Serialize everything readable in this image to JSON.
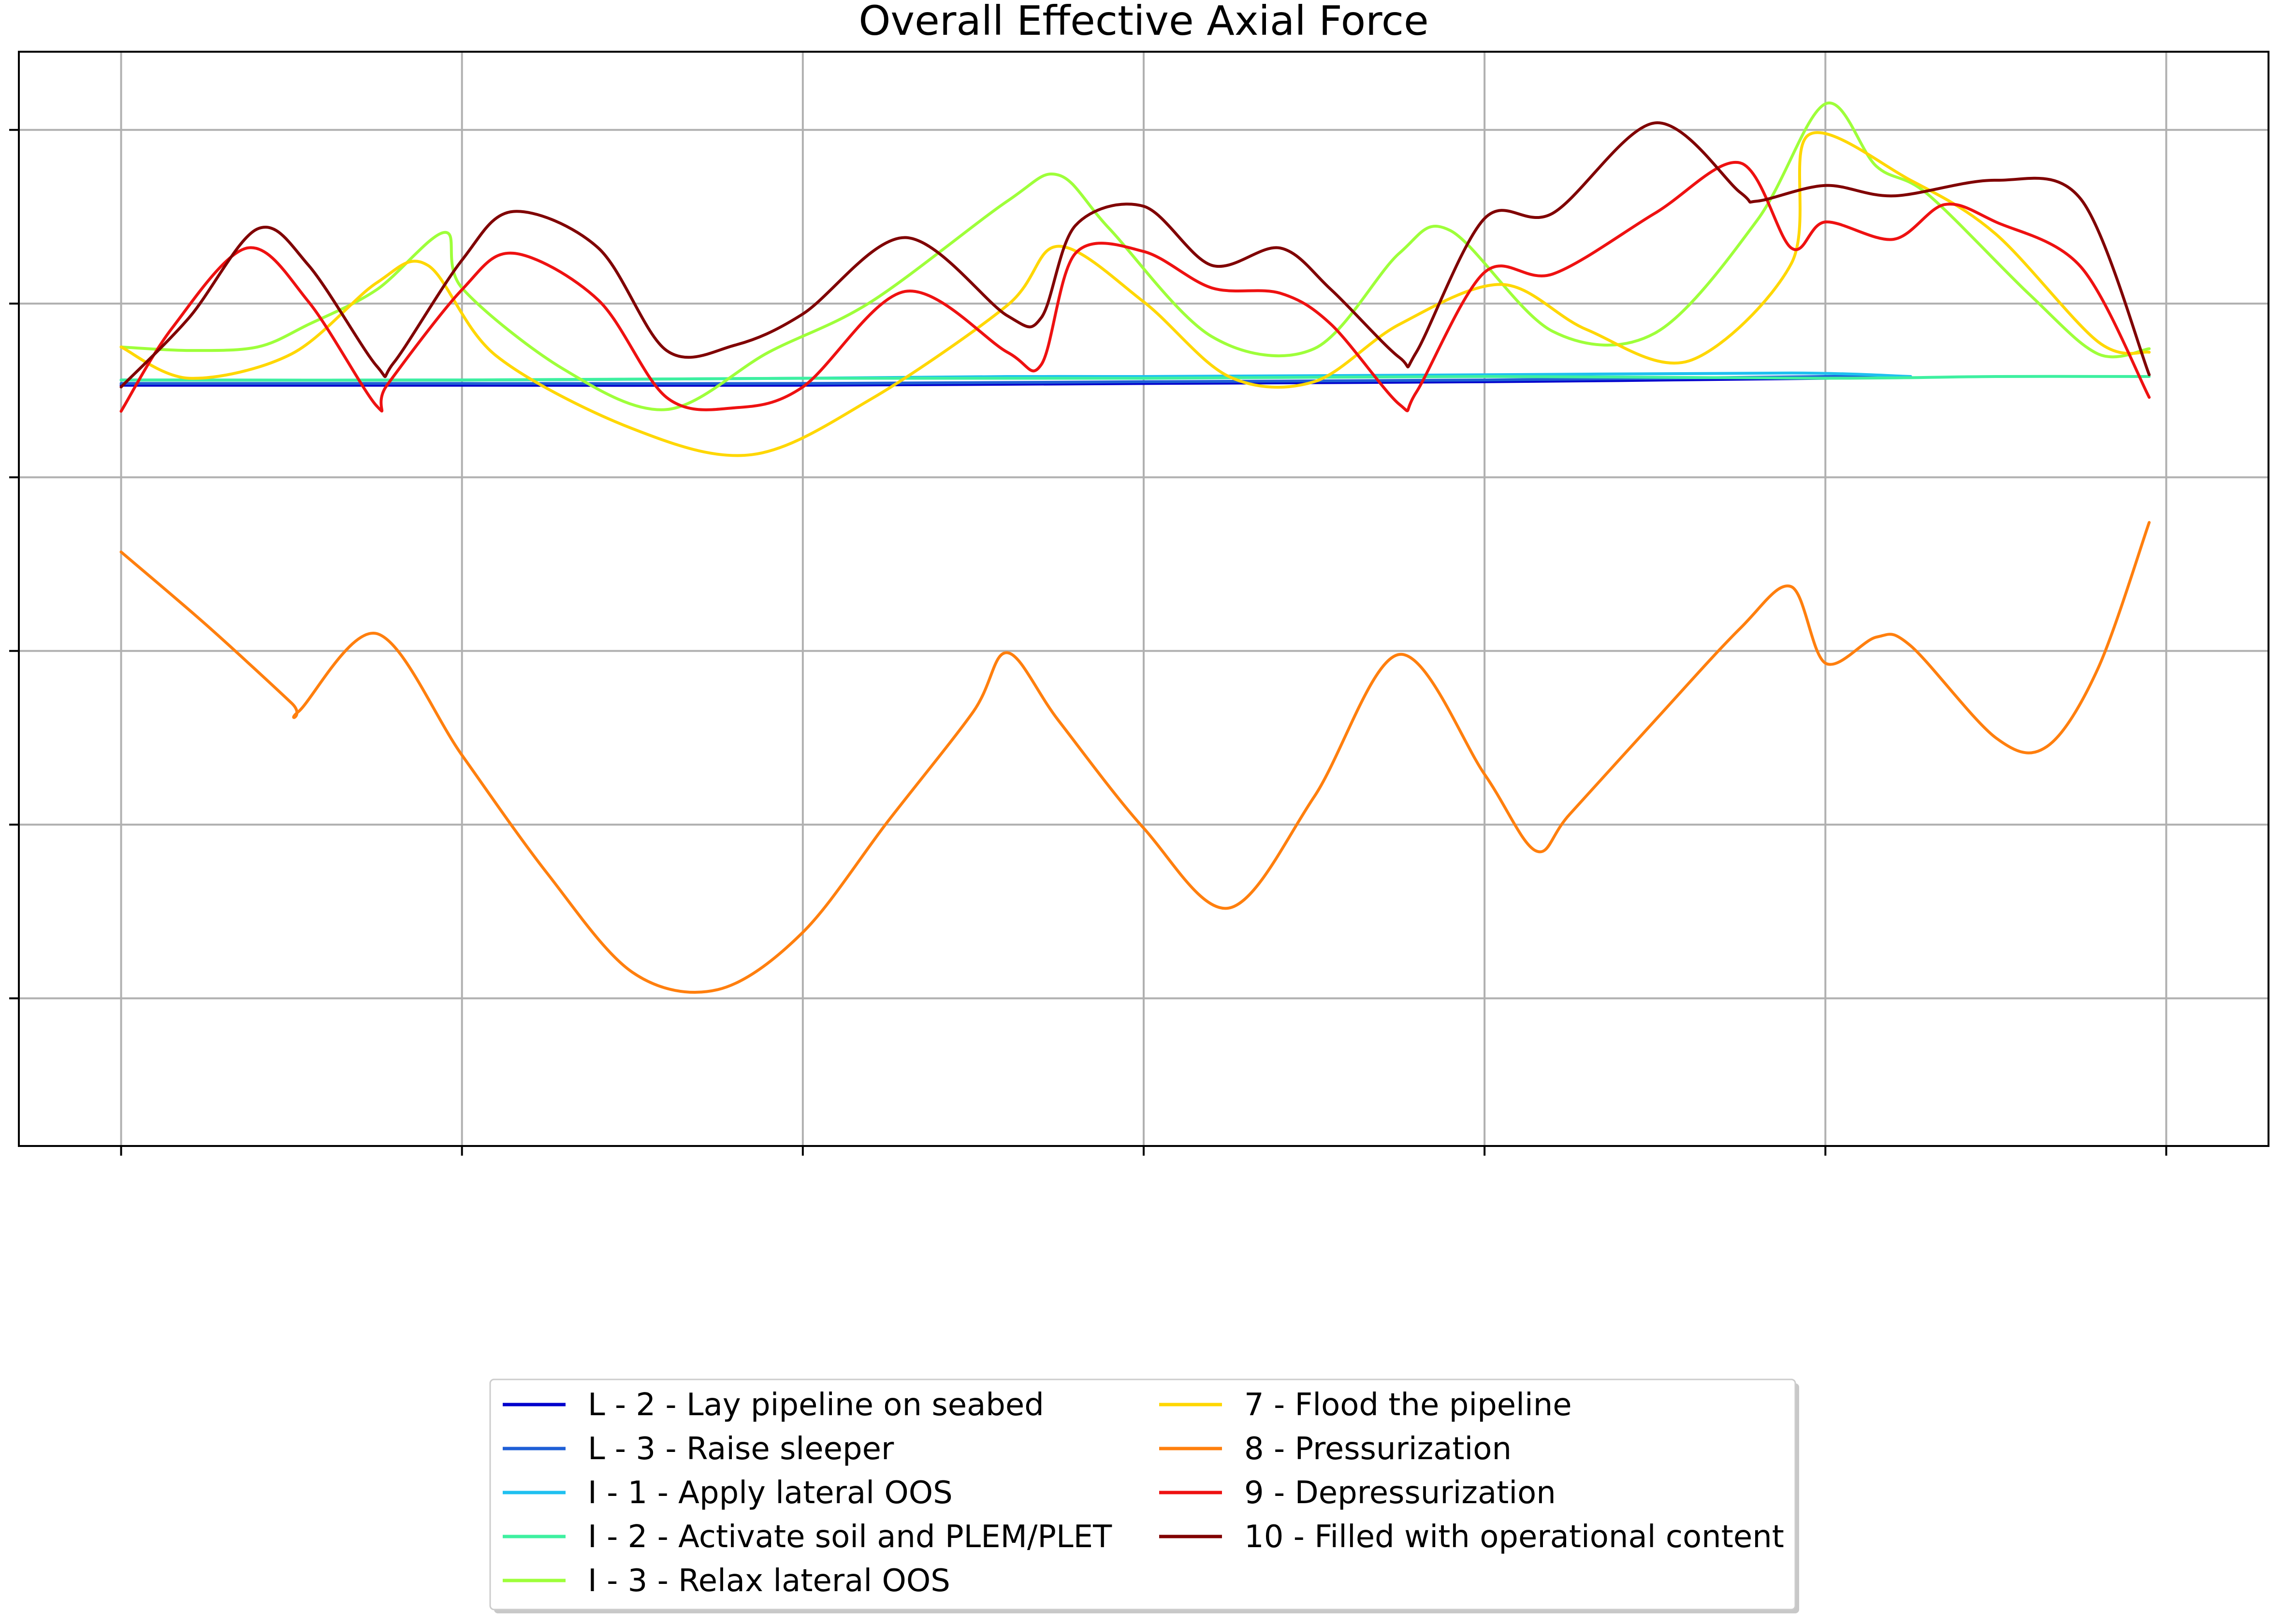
{
  "chart_data": {
    "type": "line",
    "title": "Overall Effective Axial Force",
    "xlabel": "",
    "ylabel": "",
    "xlim": [
      -0.3,
      6.3
    ],
    "ylim": [
      -4.85,
      1.45
    ],
    "x_grid_positions": [
      0,
      1,
      2,
      3,
      4,
      5,
      6
    ],
    "y_grid_positions": [
      1,
      0,
      -1,
      -2,
      -3,
      -4
    ],
    "grid": true,
    "legend_placement": "bottom-center, below plot",
    "legend_columns": 2,
    "series": [
      {
        "name": "L - 2 - Lay pipeline on seabed",
        "color": "#0000cc",
        "x": [
          0,
          1,
          2,
          3,
          4,
          5,
          5.25
        ],
        "y": [
          -0.47,
          -0.47,
          -0.47,
          -0.46,
          -0.45,
          -0.43,
          -0.42
        ]
      },
      {
        "name": "L - 3 - Raise sleeper",
        "color": "#1f5fd6",
        "x": [
          0,
          1,
          2,
          3,
          4,
          5,
          5.25
        ],
        "y": [
          -0.46,
          -0.46,
          -0.46,
          -0.45,
          -0.44,
          -0.42,
          -0.42
        ]
      },
      {
        "name": "I - 1 - Apply lateral OOS",
        "color": "#1fc0f0",
        "x": [
          0,
          1,
          2,
          2.6,
          3,
          4,
          4.9,
          5.25
        ],
        "y": [
          -0.44,
          -0.44,
          -0.43,
          -0.42,
          -0.42,
          -0.41,
          -0.4,
          -0.42
        ]
      },
      {
        "name": "I - 2 - Activate soil and PLEM/PLET",
        "color": "#3ef0a0",
        "x": [
          0,
          1,
          2,
          3,
          4,
          5,
          5.5,
          5.95
        ],
        "y": [
          -0.44,
          -0.44,
          -0.43,
          -0.43,
          -0.42,
          -0.43,
          -0.42,
          -0.42
        ]
      },
      {
        "name": "I - 3 - Relax lateral OOS",
        "color": "#9eff3a",
        "x": [
          0,
          0.2,
          0.4,
          0.55,
          0.75,
          0.95,
          1.0,
          1.3,
          1.6,
          1.9,
          2.2,
          2.6,
          2.75,
          2.9,
          3.2,
          3.5,
          3.75,
          3.9,
          4.2,
          4.5,
          4.8,
          5.0,
          5.15,
          5.3,
          5.6,
          5.8,
          5.95
        ],
        "y": [
          -0.25,
          -0.27,
          -0.25,
          -0.12,
          0.08,
          0.41,
          0.09,
          -0.38,
          -0.61,
          -0.28,
          0.01,
          0.59,
          0.74,
          0.43,
          -0.19,
          -0.26,
          0.29,
          0.42,
          -0.16,
          -0.17,
          0.48,
          1.15,
          0.79,
          0.63,
          0.05,
          -0.29,
          -0.26
        ]
      },
      {
        "name": "7  - Flood the pipeline",
        "color": "#ffd700",
        "x": [
          0,
          0.2,
          0.5,
          0.75,
          0.9,
          1.1,
          1.5,
          1.85,
          2.2,
          2.6,
          2.75,
          3.0,
          3.25,
          3.5,
          3.75,
          4.05,
          4.3,
          4.6,
          4.9,
          4.95,
          5.25,
          5.5,
          5.8,
          5.95
        ],
        "y": [
          -0.25,
          -0.43,
          -0.29,
          0.12,
          0.22,
          -0.3,
          -0.72,
          -0.87,
          -0.55,
          -0.01,
          0.33,
          0.01,
          -0.42,
          -0.45,
          -0.12,
          0.11,
          -0.15,
          -0.33,
          0.23,
          0.97,
          0.71,
          0.4,
          -0.22,
          -0.28
        ]
      },
      {
        "name": "8  - Pressurization",
        "color": "#ff7f0e",
        "x": [
          0,
          0.25,
          0.5,
          0.52,
          0.75,
          1.0,
          1.25,
          1.5,
          1.75,
          2.0,
          2.25,
          2.5,
          2.6,
          2.75,
          3.0,
          3.25,
          3.5,
          3.75,
          4.0,
          4.15,
          4.25,
          4.5,
          4.75,
          4.9,
          5.0,
          5.15,
          5.25,
          5.5,
          5.65,
          5.8,
          5.95
        ],
        "y": [
          -1.43,
          -1.85,
          -2.3,
          -2.35,
          -1.9,
          -2.6,
          -3.28,
          -3.85,
          -3.95,
          -3.62,
          -2.98,
          -2.35,
          -2.01,
          -2.4,
          -3.02,
          -3.48,
          -2.84,
          -2.02,
          -2.71,
          -3.15,
          -2.94,
          -2.4,
          -1.87,
          -1.63,
          -2.07,
          -1.92,
          -1.97,
          -2.5,
          -2.55,
          -2.1,
          -1.26
        ]
      },
      {
        "name": "9  - Depressurization",
        "color": "#ee1111",
        "x": [
          0,
          0.15,
          0.37,
          0.55,
          0.75,
          0.78,
          1.0,
          1.15,
          1.4,
          1.6,
          1.8,
          2.0,
          2.3,
          2.6,
          2.7,
          2.8,
          3.0,
          3.2,
          3.4,
          3.55,
          3.75,
          3.8,
          4.0,
          4.2,
          4.5,
          4.75,
          4.9,
          5.0,
          5.2,
          5.35,
          5.5,
          5.75,
          5.95
        ],
        "y": [
          -0.62,
          -0.14,
          0.32,
          0.01,
          -0.59,
          -0.47,
          0.08,
          0.29,
          0.02,
          -0.54,
          -0.6,
          -0.48,
          0.07,
          -0.28,
          -0.35,
          0.29,
          0.3,
          0.09,
          0.06,
          -0.12,
          -0.58,
          -0.51,
          0.18,
          0.17,
          0.52,
          0.81,
          0.32,
          0.47,
          0.37,
          0.57,
          0.47,
          0.21,
          -0.54
        ]
      },
      {
        "name": "10  - Filled with operational content",
        "color": "#800000",
        "x": [
          0,
          0.2,
          0.4,
          0.55,
          0.75,
          0.8,
          1.0,
          1.15,
          1.4,
          1.6,
          1.8,
          2.0,
          2.3,
          2.6,
          2.7,
          2.8,
          3.0,
          3.2,
          3.4,
          3.55,
          3.75,
          3.8,
          4.0,
          4.2,
          4.5,
          4.75,
          4.8,
          5.0,
          5.2,
          5.5,
          5.75,
          5.95
        ],
        "y": [
          -0.48,
          -0.08,
          0.43,
          0.22,
          -0.36,
          -0.34,
          0.25,
          0.53,
          0.32,
          -0.27,
          -0.24,
          -0.06,
          0.38,
          -0.07,
          -0.08,
          0.45,
          0.56,
          0.22,
          0.32,
          0.08,
          -0.31,
          -0.28,
          0.49,
          0.52,
          1.04,
          0.64,
          0.59,
          0.68,
          0.62,
          0.71,
          0.6,
          -0.41
        ]
      }
    ]
  }
}
